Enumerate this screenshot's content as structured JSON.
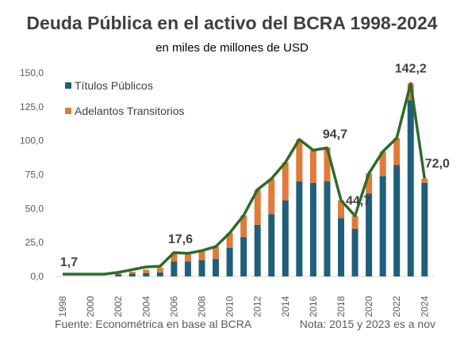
{
  "chart_data": {
    "type": "bar",
    "title": "Deuda Pública en el activo del BCRA 1998-2024",
    "subtitle": "en miles de millones de USD",
    "x": [
      1998,
      1999,
      2000,
      2001,
      2002,
      2003,
      2004,
      2005,
      2006,
      2007,
      2008,
      2009,
      2010,
      2011,
      2012,
      2013,
      2014,
      2015,
      2016,
      2017,
      2018,
      2019,
      2020,
      2021,
      2022,
      2023,
      2024
    ],
    "x_tick_labels": [
      "1998",
      "2000",
      "2002",
      "2004",
      "2006",
      "2008",
      "2010",
      "2012",
      "2014",
      "2016",
      "2018",
      "2020",
      "2022",
      "2024"
    ],
    "y_tick_labels": [
      "0,0",
      "25,0",
      "50,0",
      "75,0",
      "100,0",
      "125,0",
      "150,0"
    ],
    "ylim": [
      0,
      150
    ],
    "stacked": true,
    "series": [
      {
        "name": "Títulos Públicos",
        "color": "#1f5f7a",
        "values": [
          0,
          0,
          0,
          0,
          1.5,
          2,
          2.5,
          3,
          11,
          11,
          12,
          13,
          21,
          29,
          38,
          46,
          56,
          70,
          69,
          70,
          43,
          35,
          61,
          74,
          82,
          130,
          69
        ]
      },
      {
        "name": "Adelantos Transitorios",
        "color": "#e07b3a",
        "values": [
          0,
          0,
          0,
          0,
          0.5,
          1.5,
          2.5,
          3.5,
          6.6,
          6,
          7,
          9,
          11,
          16,
          26,
          26,
          28,
          31,
          24,
          25,
          13,
          9.7,
          15,
          18,
          20,
          12.2,
          3
        ]
      }
    ],
    "total_line": {
      "color": "#2e6b26",
      "values": [
        1.7,
        1.7,
        1.7,
        1.7,
        3,
        5,
        7,
        7.5,
        17.6,
        17,
        19,
        22,
        32,
        45,
        64,
        72,
        84,
        101,
        93,
        94.7,
        56,
        44.7,
        76,
        92,
        102,
        142.2,
        72
      ]
    },
    "annotations": [
      {
        "x": 1998,
        "label": "1,7"
      },
      {
        "x": 2006,
        "label": "17,6"
      },
      {
        "x": 2017,
        "label": "94,7"
      },
      {
        "x": 2019,
        "label": "44,7"
      },
      {
        "x": 2023,
        "label": "142,2"
      },
      {
        "x": 2024,
        "label": "72,0"
      }
    ],
    "legend_position": "top-left",
    "grid": false,
    "source": "Fuente: Econométrica en base al BCRA",
    "note": "Nota: 2015 y 2023 es a nov"
  }
}
